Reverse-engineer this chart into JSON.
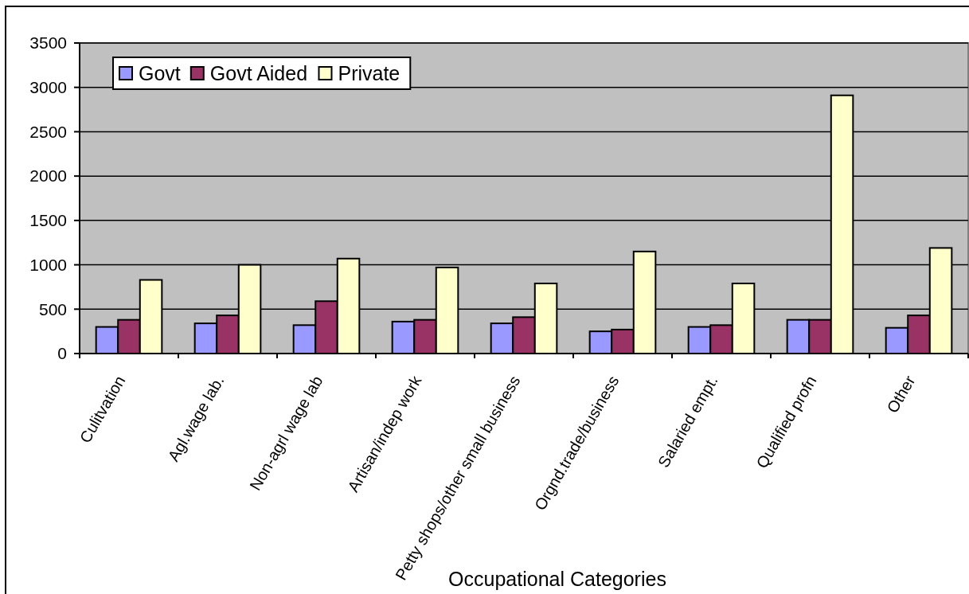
{
  "chart_data": {
    "type": "bar",
    "xlabel": "Occupational Categories",
    "categories": [
      "Culitvation",
      "Agl.wage lab.",
      "Non-agrl wage lab",
      "Artisan/indep work",
      "Petty shops/other small business",
      "Orgnd.trade/business",
      "Salaried empt.",
      "Qualified profn",
      "Other"
    ],
    "series": [
      {
        "name": "Govt",
        "color": "#9999ff",
        "values": [
          300,
          340,
          320,
          360,
          340,
          250,
          300,
          380,
          290
        ]
      },
      {
        "name": "Govt Aided",
        "color": "#993366",
        "values": [
          380,
          430,
          590,
          380,
          410,
          270,
          320,
          380,
          430
        ]
      },
      {
        "name": "Private",
        "color": "#ffffcc",
        "values": [
          830,
          1000,
          1070,
          970,
          790,
          1150,
          790,
          2910,
          1190
        ]
      }
    ],
    "ylim": [
      0,
      3500
    ],
    "yticks": [
      0,
      500,
      1000,
      1500,
      2000,
      2500,
      3000,
      3500
    ],
    "grid": "y",
    "legend": "top left"
  }
}
